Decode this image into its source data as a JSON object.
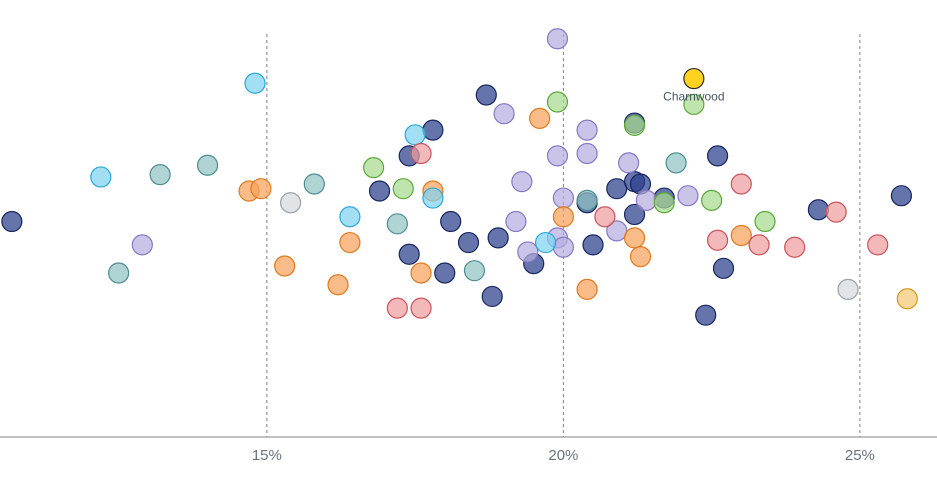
{
  "chart_data": {
    "type": "scatter",
    "title": "",
    "xlabel": "",
    "ylabel": "",
    "x_ticks": [
      {
        "value": 15,
        "label": "15%"
      },
      {
        "value": 20,
        "label": "20%"
      },
      {
        "value": 25,
        "label": "25%"
      }
    ],
    "xlim": [
      10.5,
      26.3
    ],
    "ylim": [
      -4.6,
      4.3
    ],
    "grid": "vertical dashed at ticks",
    "legend": "none",
    "colors": {
      "navy": {
        "fill": "#2b3f8c",
        "stroke": "#17265f"
      },
      "lilac": {
        "fill": "#b7ade0",
        "stroke": "#8678c4"
      },
      "orange": {
        "fill": "#f7a25a",
        "stroke": "#e07920"
      },
      "green": {
        "fill": "#a6d98e",
        "stroke": "#5ba83a"
      },
      "cyan": {
        "fill": "#7fd3f0",
        "stroke": "#2aa7d8"
      },
      "teal": {
        "fill": "#91c2c4",
        "stroke": "#4c8d90"
      },
      "red": {
        "fill": "#ee9ea0",
        "stroke": "#c7545a"
      },
      "grey": {
        "fill": "#d5d8dd",
        "stroke": "#9aa0a8"
      },
      "amber": {
        "fill": "#f5c874",
        "stroke": "#d19a1d"
      },
      "highlight": {
        "fill": "#ffd21f",
        "stroke": "#2a2a2a"
      }
    },
    "annotations": [
      {
        "label": "Charnwood",
        "x": 22.2,
        "y": 3.05
      }
    ],
    "points": [
      {
        "x": 22.2,
        "y": 3.05,
        "g": "highlight",
        "label": "Charnwood"
      },
      {
        "x": 10.7,
        "y": 0.0,
        "g": "navy"
      },
      {
        "x": 18.7,
        "y": 2.7,
        "g": "navy"
      },
      {
        "x": 17.8,
        "y": 1.95,
        "g": "navy"
      },
      {
        "x": 17.4,
        "y": 1.4,
        "g": "navy"
      },
      {
        "x": 16.9,
        "y": 0.65,
        "g": "navy"
      },
      {
        "x": 18.1,
        "y": 0.0,
        "g": "navy"
      },
      {
        "x": 18.4,
        "y": -0.45,
        "g": "navy"
      },
      {
        "x": 18.9,
        "y": -0.35,
        "g": "navy"
      },
      {
        "x": 17.4,
        "y": -0.7,
        "g": "navy"
      },
      {
        "x": 18.0,
        "y": -1.1,
        "g": "navy"
      },
      {
        "x": 18.8,
        "y": -1.6,
        "g": "navy"
      },
      {
        "x": 19.5,
        "y": -0.9,
        "g": "navy"
      },
      {
        "x": 20.5,
        "y": -0.5,
        "g": "navy"
      },
      {
        "x": 20.4,
        "y": 0.4,
        "g": "navy"
      },
      {
        "x": 20.9,
        "y": 0.7,
        "g": "navy"
      },
      {
        "x": 21.2,
        "y": 0.85,
        "g": "navy"
      },
      {
        "x": 21.3,
        "y": 0.8,
        "g": "navy"
      },
      {
        "x": 21.2,
        "y": 0.15,
        "g": "navy"
      },
      {
        "x": 21.7,
        "y": 0.5,
        "g": "navy"
      },
      {
        "x": 21.2,
        "y": 2.1,
        "g": "navy"
      },
      {
        "x": 22.6,
        "y": 1.4,
        "g": "navy"
      },
      {
        "x": 22.7,
        "y": -1.0,
        "g": "navy"
      },
      {
        "x": 22.4,
        "y": -2.0,
        "g": "navy"
      },
      {
        "x": 24.3,
        "y": 0.25,
        "g": "navy"
      },
      {
        "x": 25.7,
        "y": 0.55,
        "g": "navy"
      },
      {
        "x": 19.9,
        "y": 3.9,
        "g": "lilac"
      },
      {
        "x": 19.0,
        "y": 2.3,
        "g": "lilac"
      },
      {
        "x": 20.4,
        "y": 1.95,
        "g": "lilac"
      },
      {
        "x": 20.4,
        "y": 1.45,
        "g": "lilac"
      },
      {
        "x": 19.9,
        "y": 1.4,
        "g": "lilac"
      },
      {
        "x": 21.1,
        "y": 1.25,
        "g": "lilac"
      },
      {
        "x": 19.3,
        "y": 0.85,
        "g": "lilac"
      },
      {
        "x": 20.0,
        "y": 0.5,
        "g": "lilac"
      },
      {
        "x": 21.4,
        "y": 0.45,
        "g": "lilac"
      },
      {
        "x": 22.1,
        "y": 0.55,
        "g": "lilac"
      },
      {
        "x": 19.2,
        "y": 0.0,
        "g": "lilac"
      },
      {
        "x": 20.9,
        "y": -0.2,
        "g": "lilac"
      },
      {
        "x": 19.9,
        "y": -0.35,
        "g": "lilac"
      },
      {
        "x": 19.4,
        "y": -0.65,
        "g": "lilac"
      },
      {
        "x": 20.0,
        "y": -0.55,
        "g": "lilac"
      },
      {
        "x": 12.9,
        "y": -0.5,
        "g": "lilac"
      },
      {
        "x": 14.7,
        "y": 0.65,
        "g": "orange"
      },
      {
        "x": 14.9,
        "y": 0.7,
        "g": "orange"
      },
      {
        "x": 15.3,
        "y": -0.95,
        "g": "orange"
      },
      {
        "x": 16.2,
        "y": -1.35,
        "g": "orange"
      },
      {
        "x": 16.4,
        "y": -0.45,
        "g": "orange"
      },
      {
        "x": 17.6,
        "y": -1.1,
        "g": "orange"
      },
      {
        "x": 17.8,
        "y": 0.65,
        "g": "orange"
      },
      {
        "x": 19.6,
        "y": 2.2,
        "g": "orange"
      },
      {
        "x": 20.0,
        "y": 0.1,
        "g": "orange"
      },
      {
        "x": 20.4,
        "y": -1.45,
        "g": "orange"
      },
      {
        "x": 21.2,
        "y": -0.35,
        "g": "orange"
      },
      {
        "x": 21.3,
        "y": -0.75,
        "g": "orange"
      },
      {
        "x": 23.0,
        "y": -0.3,
        "g": "orange"
      },
      {
        "x": 16.8,
        "y": 1.15,
        "g": "green"
      },
      {
        "x": 17.3,
        "y": 0.7,
        "g": "green"
      },
      {
        "x": 19.9,
        "y": 2.55,
        "g": "green"
      },
      {
        "x": 21.2,
        "y": 2.05,
        "g": "green"
      },
      {
        "x": 21.7,
        "y": 0.4,
        "g": "green"
      },
      {
        "x": 22.2,
        "y": 2.5,
        "g": "green"
      },
      {
        "x": 22.5,
        "y": 0.45,
        "g": "green"
      },
      {
        "x": 23.4,
        "y": 0.0,
        "g": "green"
      },
      {
        "x": 14.8,
        "y": 2.95,
        "g": "cyan"
      },
      {
        "x": 12.2,
        "y": 0.95,
        "g": "cyan"
      },
      {
        "x": 17.5,
        "y": 1.85,
        "g": "cyan"
      },
      {
        "x": 16.4,
        "y": 0.1,
        "g": "cyan"
      },
      {
        "x": 17.8,
        "y": 0.5,
        "g": "cyan"
      },
      {
        "x": 19.7,
        "y": -0.45,
        "g": "cyan"
      },
      {
        "x": 13.2,
        "y": 1.0,
        "g": "teal"
      },
      {
        "x": 14.0,
        "y": 1.2,
        "g": "teal"
      },
      {
        "x": 12.5,
        "y": -1.1,
        "g": "teal"
      },
      {
        "x": 15.8,
        "y": 0.8,
        "g": "teal"
      },
      {
        "x": 17.2,
        "y": -0.05,
        "g": "teal"
      },
      {
        "x": 18.5,
        "y": -1.05,
        "g": "teal"
      },
      {
        "x": 20.4,
        "y": 0.45,
        "g": "teal"
      },
      {
        "x": 21.9,
        "y": 1.25,
        "g": "teal"
      },
      {
        "x": 17.6,
        "y": 1.45,
        "g": "red"
      },
      {
        "x": 17.2,
        "y": -1.85,
        "g": "red"
      },
      {
        "x": 17.6,
        "y": -1.85,
        "g": "red"
      },
      {
        "x": 20.7,
        "y": 0.1,
        "g": "red"
      },
      {
        "x": 22.6,
        "y": -0.4,
        "g": "red"
      },
      {
        "x": 23.0,
        "y": 0.8,
        "g": "red"
      },
      {
        "x": 23.3,
        "y": -0.5,
        "g": "red"
      },
      {
        "x": 23.9,
        "y": -0.55,
        "g": "red"
      },
      {
        "x": 24.6,
        "y": 0.2,
        "g": "red"
      },
      {
        "x": 25.3,
        "y": -0.5,
        "g": "red"
      },
      {
        "x": 15.4,
        "y": 0.4,
        "g": "grey"
      },
      {
        "x": 24.8,
        "y": -1.45,
        "g": "grey"
      },
      {
        "x": 25.8,
        "y": -1.65,
        "g": "amber"
      }
    ]
  }
}
